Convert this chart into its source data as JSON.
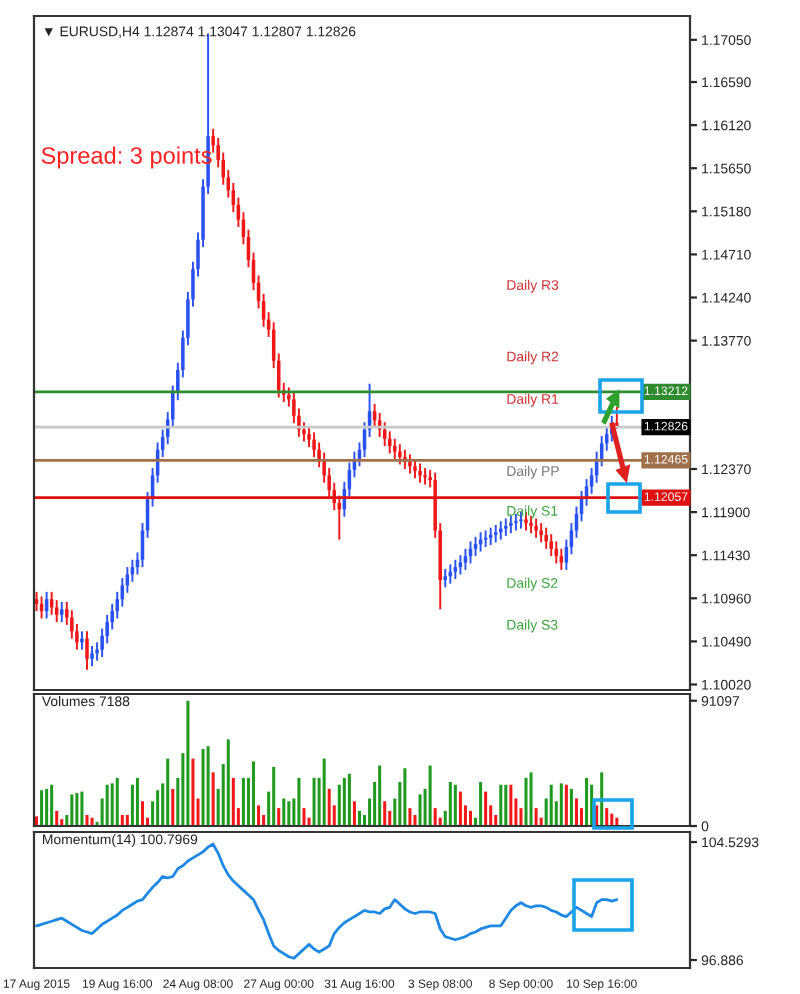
{
  "chart_data": [
    {
      "type": "candlestick",
      "title": "▼ EURUSD,H4 1.12874 1.13047 1.12807 1.12826",
      "tick_labels": "y",
      "colors": [
        "#f01818",
        "#f01818",
        "#2a52f0",
        "#f01818",
        "#f01818",
        "#2a52f0",
        "#f01818",
        "#f01818",
        "#f01818",
        "#2a52f0",
        "#f01818",
        "#2a52f0",
        "#2a52f0",
        "#2a52f0",
        "#2a52f0",
        "#2a52f0",
        "#2a52f0",
        "#2a52f0",
        "#2a52f0",
        "#2a52f0",
        "#2a52f0",
        "#2a52f0",
        "#2a52f0",
        "#2a52f0",
        "#2a52f0",
        "#2a52f0",
        "#2a52f0",
        "#2a52f0",
        "#2a52f0",
        "#2a52f0",
        "#2a52f0",
        "#2a52f0",
        "#2a52f0",
        "#2a52f0",
        "#2a52f0",
        "#f01818",
        "#f01818",
        "#f01818",
        "#f01818",
        "#f01818",
        "#f01818",
        "#f01818",
        "#f01818",
        "#f01818",
        "#f01818",
        "#f01818",
        "#f01818",
        "#f01818",
        "#f01818",
        "#f01818",
        "#f01818",
        "#f01818",
        "#f01818",
        "#f01818",
        "#f01818",
        "#f01818",
        "#f01818",
        "#f01818",
        "#f01818",
        "#f01818",
        "#f01818",
        "#2a52f0",
        "#2a52f0",
        "#2a52f0",
        "#2a52f0",
        "#2a52f0",
        "#2a52f0",
        "#f01818",
        "#f01818",
        "#f01818",
        "#f01818",
        "#f01818",
        "#f01818",
        "#f01818",
        "#f01818",
        "#f01818",
        "#f01818",
        "#f01818",
        "#f01818",
        "#f01818",
        "#f01818",
        "#2a52f0",
        "#2a52f0",
        "#2a52f0",
        "#2a52f0",
        "#2a52f0",
        "#2a52f0",
        "#2a52f0",
        "#2a52f0",
        "#2a52f0",
        "#2a52f0",
        "#2a52f0",
        "#2a52f0",
        "#2a52f0",
        "#2a52f0",
        "#2a52f0",
        "#2a52f0",
        "#f01818",
        "#f01818",
        "#f01818",
        "#f01818",
        "#f01818",
        "#f01818",
        "#f01818",
        "#f01818",
        "#2a52f0",
        "#2a52f0",
        "#2a52f0",
        "#2a52f0",
        "#2a52f0",
        "#2a52f0",
        "#2a52f0",
        "#2a52f0",
        "#2a52f0",
        "#2a52f0",
        "#f01818",
        null,
        null,
        null,
        null,
        null,
        null,
        null,
        null,
        null,
        null,
        null,
        null,
        null,
        null
      ],
      "categories": [
        null,
        null,
        null,
        null,
        null,
        null,
        null,
        null,
        null,
        null,
        null,
        null,
        null,
        null,
        null,
        null,
        null,
        null,
        null,
        null,
        null,
        null,
        null,
        null,
        null,
        null,
        null,
        null,
        null,
        null,
        null,
        null,
        null,
        null,
        null,
        null,
        null,
        null,
        null,
        null,
        null,
        null,
        null,
        null,
        null,
        null,
        null,
        null,
        null,
        null,
        null,
        null,
        null,
        null,
        null,
        null,
        null,
        null,
        null,
        null,
        null,
        null,
        null,
        null,
        null,
        null,
        null,
        null,
        null,
        null,
        null,
        null,
        null,
        null,
        null,
        null,
        null,
        null,
        null,
        null,
        null,
        null,
        null,
        null,
        null,
        null,
        null,
        null,
        null,
        null,
        null,
        null,
        null,
        null,
        null,
        null,
        null,
        null,
        null,
        null,
        null,
        null,
        null,
        null,
        null,
        null,
        null,
        null,
        null,
        null,
        null,
        null,
        null,
        null,
        null,
        null,
        null,
        null,
        null,
        null,
        null,
        null,
        null,
        null,
        null,
        null,
        null,
        null,
        null,
        null
      ],
      "ohlc": [
        [
          1.1095,
          1.1103,
          1.1082,
          1.109
        ],
        [
          1.109,
          1.1098,
          1.1074,
          1.1082
        ],
        [
          1.1082,
          1.1103,
          1.1074,
          1.1095
        ],
        [
          1.1095,
          1.1103,
          1.1078,
          1.1086
        ],
        [
          1.1086,
          1.1094,
          1.107,
          1.1078
        ],
        [
          1.1078,
          1.1092,
          1.107,
          1.1084
        ],
        [
          1.1084,
          1.1092,
          1.1067,
          1.1075
        ],
        [
          1.1075,
          1.1083,
          1.1052,
          1.106
        ],
        [
          1.106,
          1.1068,
          1.104,
          1.1048
        ],
        [
          1.1048,
          1.106,
          1.104,
          1.1052
        ],
        [
          1.1052,
          1.106,
          1.1018,
          1.103
        ],
        [
          1.103,
          1.1044,
          1.1022,
          1.1036
        ],
        [
          1.1036,
          1.1048,
          1.1028,
          1.104
        ],
        [
          1.104,
          1.1063,
          1.1032,
          1.1055
        ],
        [
          1.1055,
          1.1078,
          1.1047,
          1.107
        ],
        [
          1.107,
          1.109,
          1.1062,
          1.1082
        ],
        [
          1.1082,
          1.1103,
          1.1074,
          1.1095
        ],
        [
          1.1095,
          1.1118,
          1.1087,
          1.111
        ],
        [
          1.111,
          1.113,
          1.1102,
          1.1122
        ],
        [
          1.1122,
          1.1138,
          1.1114,
          1.113
        ],
        [
          1.113,
          1.1146,
          1.1122,
          1.1138
        ],
        [
          1.1138,
          1.1178,
          1.113,
          1.117
        ],
        [
          1.117,
          1.1212,
          1.1162,
          1.1204
        ],
        [
          1.1204,
          1.1238,
          1.1196,
          1.123
        ],
        [
          1.123,
          1.1266,
          1.1222,
          1.1258
        ],
        [
          1.1258,
          1.128,
          1.125,
          1.1272
        ],
        [
          1.1272,
          1.1299,
          1.1264,
          1.1291
        ],
        [
          1.1291,
          1.1328,
          1.1283,
          1.132
        ],
        [
          1.132,
          1.1353,
          1.1312,
          1.1345
        ],
        [
          1.1345,
          1.1388,
          1.1337,
          1.138
        ],
        [
          1.138,
          1.143,
          1.1372,
          1.1422
        ],
        [
          1.1422,
          1.1463,
          1.1414,
          1.1455
        ],
        [
          1.1455,
          1.1495,
          1.1447,
          1.1487
        ],
        [
          1.1487,
          1.1553,
          1.1479,
          1.1545
        ],
        [
          1.1545,
          1.1712,
          1.1537,
          1.16
        ],
        [
          1.16,
          1.1608,
          1.1582,
          1.159
        ],
        [
          1.159,
          1.1598,
          1.1566,
          1.1574
        ],
        [
          1.1574,
          1.1582,
          1.1547,
          1.1555
        ],
        [
          1.1555,
          1.1563,
          1.1533,
          1.1541
        ],
        [
          1.1541,
          1.1549,
          1.1517,
          1.1525
        ],
        [
          1.1525,
          1.1533,
          1.1501,
          1.1509
        ],
        [
          1.1509,
          1.1517,
          1.1482,
          1.149
        ],
        [
          1.149,
          1.1498,
          1.1457,
          1.1465
        ],
        [
          1.1465,
          1.1473,
          1.1432,
          1.144
        ],
        [
          1.144,
          1.1448,
          1.1412,
          1.142
        ],
        [
          1.142,
          1.1428,
          1.1392,
          1.14
        ],
        [
          1.14,
          1.1408,
          1.1381,
          1.1389
        ],
        [
          1.1389,
          1.1397,
          1.1347,
          1.1355
        ],
        [
          1.1355,
          1.1363,
          1.1315,
          1.1323
        ],
        [
          1.1323,
          1.1331,
          1.131,
          1.1318
        ],
        [
          1.1318,
          1.1326,
          1.1305,
          1.1313
        ],
        [
          1.1313,
          1.1321,
          1.1287,
          1.1295
        ],
        [
          1.1295,
          1.1303,
          1.1272,
          1.128
        ],
        [
          1.128,
          1.1288,
          1.1267,
          1.1275
        ],
        [
          1.1275,
          1.1283,
          1.1261,
          1.1269
        ],
        [
          1.1269,
          1.1277,
          1.125,
          1.1258
        ],
        [
          1.1258,
          1.1266,
          1.1239,
          1.1247
        ],
        [
          1.1247,
          1.1255,
          1.1222,
          1.123
        ],
        [
          1.123,
          1.1238,
          1.1206,
          1.1214
        ],
        [
          1.1214,
          1.1222,
          1.1192,
          1.12
        ],
        [
          1.12,
          1.1208,
          1.116,
          1.1193
        ],
        [
          1.1193,
          1.1223,
          1.1185,
          1.1215
        ],
        [
          1.1215,
          1.1244,
          1.1207,
          1.1236
        ],
        [
          1.1236,
          1.1256,
          1.1228,
          1.1248
        ],
        [
          1.1248,
          1.1266,
          1.124,
          1.1258
        ],
        [
          1.1258,
          1.1288,
          1.125,
          1.128
        ],
        [
          1.128,
          1.133,
          1.1272,
          1.13
        ],
        [
          1.13,
          1.1308,
          1.1282,
          1.129
        ],
        [
          1.129,
          1.1298,
          1.1272,
          1.128
        ],
        [
          1.128,
          1.1288,
          1.1262,
          1.127
        ],
        [
          1.127,
          1.1278,
          1.1254,
          1.1262
        ],
        [
          1.1262,
          1.127,
          1.1248,
          1.1256
        ],
        [
          1.1256,
          1.1264,
          1.1242,
          1.125
        ],
        [
          1.125,
          1.1258,
          1.1237,
          1.1245
        ],
        [
          1.1245,
          1.1253,
          1.1232,
          1.124
        ],
        [
          1.124,
          1.1248,
          1.1227,
          1.1235
        ],
        [
          1.1235,
          1.1243,
          1.1222,
          1.123
        ],
        [
          1.123,
          1.1238,
          1.122,
          1.1228
        ],
        [
          1.1228,
          1.1236,
          1.1217,
          1.1225
        ],
        [
          1.1225,
          1.1233,
          1.1162,
          1.117
        ],
        [
          1.117,
          1.1178,
          1.1084,
          1.1116
        ],
        [
          1.1116,
          1.1128,
          1.1108,
          1.112
        ],
        [
          1.112,
          1.1133,
          1.1112,
          1.1125
        ],
        [
          1.1125,
          1.1138,
          1.1117,
          1.113
        ],
        [
          1.113,
          1.1143,
          1.1122,
          1.1135
        ],
        [
          1.1135,
          1.115,
          1.1127,
          1.1142
        ],
        [
          1.1142,
          1.1158,
          1.1134,
          1.115
        ],
        [
          1.115,
          1.1163,
          1.1142,
          1.1155
        ],
        [
          1.1155,
          1.1168,
          1.1147,
          1.116
        ],
        [
          1.116,
          1.117,
          1.1152,
          1.1162
        ],
        [
          1.1162,
          1.1173,
          1.1154,
          1.1165
        ],
        [
          1.1165,
          1.1176,
          1.1157,
          1.1168
        ],
        [
          1.1168,
          1.118,
          1.116,
          1.1172
        ],
        [
          1.1172,
          1.1183,
          1.1164,
          1.1175
        ],
        [
          1.1175,
          1.1186,
          1.1167,
          1.1178
        ],
        [
          1.1178,
          1.1188,
          1.117,
          1.118
        ],
        [
          1.118,
          1.119,
          1.1172,
          1.1182
        ],
        [
          1.1182,
          1.119,
          1.117,
          1.1178
        ],
        [
          1.1178,
          1.1186,
          1.1167,
          1.1175
        ],
        [
          1.1175,
          1.1183,
          1.1162,
          1.117
        ],
        [
          1.117,
          1.1178,
          1.1157,
          1.1165
        ],
        [
          1.1165,
          1.1173,
          1.115,
          1.1158
        ],
        [
          1.1158,
          1.1166,
          1.1142,
          1.115
        ],
        [
          1.115,
          1.1158,
          1.1134,
          1.1142
        ],
        [
          1.1142,
          1.115,
          1.1127,
          1.1135
        ],
        [
          1.1135,
          1.116,
          1.1127,
          1.1152
        ],
        [
          1.1152,
          1.1178,
          1.1144,
          1.117
        ],
        [
          1.117,
          1.1196,
          1.1162,
          1.1188
        ],
        [
          1.1188,
          1.1213,
          1.118,
          1.1205
        ],
        [
          1.1205,
          1.1226,
          1.1197,
          1.1218
        ],
        [
          1.1218,
          1.1238,
          1.121,
          1.123
        ],
        [
          1.123,
          1.1256,
          1.1222,
          1.1248
        ],
        [
          1.1248,
          1.1273,
          1.124,
          1.1265
        ],
        [
          1.1265,
          1.1283,
          1.1257,
          1.1275
        ],
        [
          1.1275,
          1.1295,
          1.1267,
          1.12874
        ],
        [
          1.12874,
          1.13047,
          1.12807,
          1.12826
        ],
        null,
        null,
        null,
        null,
        null,
        null,
        null,
        null,
        null,
        null,
        null,
        null,
        null,
        null
      ],
      "ylim": [
        1.0996,
        1.1731
      ],
      "yticks": [
        {
          "value": 1.1705,
          "label": "1.17050"
        },
        {
          "value": 1.1659,
          "label": "1.16590"
        },
        {
          "value": 1.1612,
          "label": "1.16120"
        },
        {
          "value": 1.1565,
          "label": "1.15650"
        },
        {
          "value": 1.1518,
          "label": "1.15180"
        },
        {
          "value": 1.1471,
          "label": "1.14710"
        },
        {
          "value": 1.1424,
          "label": "1.14240"
        },
        {
          "value": 1.1377,
          "label": "1.13770"
        },
        {
          "value": 1.1237,
          "label": "1.12370"
        },
        {
          "value": 1.119,
          "label": "1.11900"
        },
        {
          "value": 1.1143,
          "label": "1.11430"
        },
        {
          "value": 1.1096,
          "label": "1.10960"
        },
        {
          "value": 1.1049,
          "label": "1.10490"
        },
        {
          "value": 1.1002,
          "label": "1.10020"
        }
      ],
      "ref_lines": [
        {
          "axis": "y",
          "value": 1.13212,
          "label": "1.13212",
          "color": "#2e8b2e"
        },
        {
          "axis": "y",
          "value": 1.12826,
          "label": "1.12826",
          "color": "#c8c8c8"
        },
        {
          "axis": "y",
          "value": 1.12465,
          "label": "1.12465",
          "color": "#a0704a"
        },
        {
          "axis": "y",
          "value": 1.12057,
          "label": "1.12057",
          "color": "#e01010"
        }
      ],
      "annotations": [
        "Spread: 3 points",
        "Daily R3",
        "Daily R2",
        "Daily R1",
        "Daily PP",
        "Daily S1",
        "Daily S2",
        "Daily S3"
      ]
    },
    {
      "type": "bar",
      "title": "Volumes 7188",
      "tick_labels": "y",
      "categories": [
        null,
        null,
        null,
        null,
        null,
        null,
        null,
        null,
        null,
        null,
        null,
        null,
        null,
        null,
        null,
        null,
        null,
        null,
        null,
        null,
        null,
        null,
        null,
        null,
        null,
        null,
        null,
        null,
        null,
        null,
        null,
        null,
        null,
        null,
        null,
        null,
        null,
        null,
        null,
        null,
        null,
        null,
        null,
        null,
        null,
        null,
        null,
        null,
        null,
        null,
        null,
        null,
        null,
        null,
        null,
        null,
        null,
        null,
        null,
        null,
        null,
        null,
        null,
        null,
        null,
        null,
        null,
        null,
        null,
        null,
        null,
        null,
        null,
        null,
        null,
        null,
        null,
        null,
        null,
        null,
        null,
        null,
        null,
        null,
        null,
        null,
        null,
        null,
        null,
        null,
        null,
        null,
        null,
        null,
        null,
        null,
        null,
        null,
        null,
        null,
        null,
        null,
        null,
        null,
        null,
        null,
        null,
        null,
        null,
        null,
        null,
        null,
        null,
        null,
        null,
        null,
        null,
        null,
        null,
        null,
        null,
        null,
        null,
        null,
        null,
        null,
        null,
        null,
        null,
        null
      ],
      "values": [
        7000,
        26000,
        27000,
        30000,
        11000,
        5000,
        8000,
        23000,
        24000,
        25000,
        8000,
        6000,
        3000,
        20000,
        30000,
        31000,
        35000,
        8000,
        8000,
        30000,
        35000,
        18000,
        6000,
        18000,
        26000,
        31000,
        49000,
        27000,
        35000,
        53000,
        91097,
        49000,
        20000,
        56000,
        58000,
        39000,
        27000,
        45000,
        63000,
        35000,
        13000,
        35000,
        35000,
        47000,
        15000,
        8000,
        25000,
        43000,
        13000,
        20000,
        18000,
        20000,
        35000,
        13000,
        6000,
        35000,
        35000,
        49000,
        27000,
        15000,
        30000,
        35000,
        38000,
        18000,
        11000,
        8000,
        20000,
        32000,
        44000,
        18000,
        11000,
        20000,
        32000,
        42000,
        13000,
        8000,
        23000,
        27000,
        44000,
        13000,
        6000,
        11000,
        32000,
        30000,
        25000,
        15000,
        11000,
        6000,
        32000,
        25000,
        15000,
        8000,
        30000,
        30000,
        30000,
        20000,
        13000,
        35000,
        39000,
        13000,
        6000,
        20000,
        30000,
        18000,
        31000,
        30000,
        27000,
        20000,
        13000,
        35000,
        30000,
        15000,
        39000,
        13000,
        9000,
        6000,
        null,
        null,
        null,
        null,
        null,
        null,
        null,
        null,
        null,
        null,
        null,
        null,
        null,
        null
      ],
      "colors": [
        "#f01818",
        "#1f9a1f",
        "#1f9a1f",
        "#1f9a1f",
        "#f01818",
        "#f01818",
        "#1f9a1f",
        "#1f9a1f",
        "#1f9a1f",
        "#1f9a1f",
        "#f01818",
        "#f01818",
        "#1f9a1f",
        "#1f9a1f",
        "#1f9a1f",
        "#1f9a1f",
        "#1f9a1f",
        "#f01818",
        "#f01818",
        "#1f9a1f",
        "#1f9a1f",
        "#f01818",
        "#f01818",
        "#1f9a1f",
        "#1f9a1f",
        "#1f9a1f",
        "#1f9a1f",
        "#f01818",
        "#1f9a1f",
        "#1f9a1f",
        "#1f9a1f",
        "#f01818",
        "#f01818",
        "#1f9a1f",
        "#1f9a1f",
        "#f01818",
        "#1f9a1f",
        "#1f9a1f",
        "#1f9a1f",
        "#f01818",
        "#f01818",
        "#1f9a1f",
        "#1f9a1f",
        "#1f9a1f",
        "#f01818",
        "#f01818",
        "#1f9a1f",
        "#1f9a1f",
        "#f01818",
        "#1f9a1f",
        "#1f9a1f",
        "#1f9a1f",
        "#1f9a1f",
        "#f01818",
        "#f01818",
        "#1f9a1f",
        "#1f9a1f",
        "#1f9a1f",
        "#f01818",
        "#f01818",
        "#1f9a1f",
        "#1f9a1f",
        "#1f9a1f",
        "#f01818",
        "#1f9a1f",
        "#1f9a1f",
        "#1f9a1f",
        "#1f9a1f",
        "#1f9a1f",
        "#f01818",
        "#f01818",
        "#1f9a1f",
        "#1f9a1f",
        "#1f9a1f",
        "#f01818",
        "#f01818",
        "#1f9a1f",
        "#1f9a1f",
        "#1f9a1f",
        "#f01818",
        "#f01818",
        "#1f9a1f",
        "#1f9a1f",
        "#1f9a1f",
        "#f01818",
        "#f01818",
        "#f01818",
        "#1f9a1f",
        "#1f9a1f",
        "#f01818",
        "#f01818",
        "#f01818",
        "#1f9a1f",
        "#1f9a1f",
        "#f01818",
        "#f01818",
        "#f01818",
        "#1f9a1f",
        "#1f9a1f",
        "#f01818",
        "#f01818",
        "#1f9a1f",
        "#1f9a1f",
        "#1f9a1f",
        "#1f9a1f",
        "#f01818",
        "#1f9a1f",
        "#f01818",
        "#f01818",
        "#1f9a1f",
        "#1f9a1f",
        "#f01818",
        "#1f9a1f",
        "#f01818",
        "#f01818",
        "#f01818",
        null,
        null,
        null,
        null,
        null,
        null,
        null,
        null,
        null,
        null,
        null,
        null,
        null,
        null
      ],
      "ylim": [
        0,
        96000
      ],
      "yticks": [
        91097,
        0
      ]
    },
    {
      "type": "line",
      "title": "Momentum(14) 100.7969",
      "categories": [
        "17 Aug 2015",
        null,
        null,
        null,
        null,
        null,
        null,
        null,
        null,
        null,
        null,
        null,
        null,
        null,
        null,
        null,
        "19 Aug 16:00",
        null,
        null,
        null,
        null,
        null,
        null,
        null,
        null,
        null,
        null,
        null,
        null,
        null,
        null,
        null,
        "24 Aug 08:00",
        null,
        null,
        null,
        null,
        null,
        null,
        null,
        null,
        null,
        null,
        null,
        null,
        null,
        null,
        null,
        "27 Aug 00:00",
        null,
        null,
        null,
        null,
        null,
        null,
        null,
        null,
        null,
        null,
        null,
        null,
        null,
        null,
        null,
        "31 Aug 16:00",
        null,
        null,
        null,
        null,
        null,
        null,
        null,
        null,
        null,
        null,
        null,
        null,
        null,
        null,
        null,
        "3 Sep 08:00",
        null,
        null,
        null,
        null,
        null,
        null,
        null,
        null,
        null,
        null,
        null,
        null,
        null,
        null,
        null,
        "8 Sep 00:00",
        null,
        null,
        null,
        null,
        null,
        null,
        null,
        null,
        null,
        null,
        null,
        null,
        null,
        null,
        null,
        "10 Sep 16:00",
        null,
        null,
        null,
        null,
        null,
        null,
        null,
        null,
        null,
        null,
        null,
        null,
        null,
        null,
        null,
        null,
        null
      ],
      "series": [
        {
          "color": "#1e88e5",
          "values": [
            99.1,
            99.2,
            99.3,
            99.4,
            99.5,
            99.6,
            99.4,
            99.2,
            99.0,
            98.8,
            98.7,
            98.6,
            98.9,
            99.2,
            99.4,
            99.6,
            99.8,
            100.1,
            100.3,
            100.5,
            100.7,
            100.8,
            101.2,
            101.6,
            101.9,
            102.3,
            102.2,
            102.3,
            102.8,
            103.0,
            103.3,
            103.5,
            103.7,
            103.9,
            104.2,
            104.4,
            103.8,
            103.0,
            102.4,
            102.0,
            101.7,
            101.4,
            101.1,
            100.8,
            100.1,
            99.5,
            98.6,
            97.8,
            97.5,
            97.3,
            97.1,
            97.0,
            97.3,
            97.6,
            97.9,
            97.6,
            97.4,
            97.6,
            97.8,
            98.6,
            99.0,
            99.3,
            99.5,
            99.7,
            99.9,
            100.1,
            100.0,
            100.0,
            99.9,
            100.2,
            100.3,
            100.8,
            100.5,
            100.2,
            100.0,
            99.9,
            100.0,
            100.0,
            100.0,
            99.9,
            98.9,
            98.4,
            98.3,
            98.2,
            98.3,
            98.4,
            98.6,
            98.7,
            98.9,
            99.0,
            99.1,
            99.1,
            99.1,
            99.6,
            100.1,
            100.4,
            100.6,
            100.4,
            100.3,
            100.4,
            100.4,
            100.3,
            100.1,
            100.0,
            99.8,
            99.7,
            100.0,
            100.3,
            100.1,
            99.9,
            99.7,
            100.6,
            100.8,
            100.8,
            100.7,
            100.8,
            null,
            null,
            null,
            null,
            null,
            null,
            null,
            null,
            null,
            null,
            null,
            null,
            null,
            null
          ]
        }
      ],
      "ylim": [
        96.37,
        105.18
      ],
      "yticks": [
        104.5293,
        96.886
      ]
    }
  ]
}
